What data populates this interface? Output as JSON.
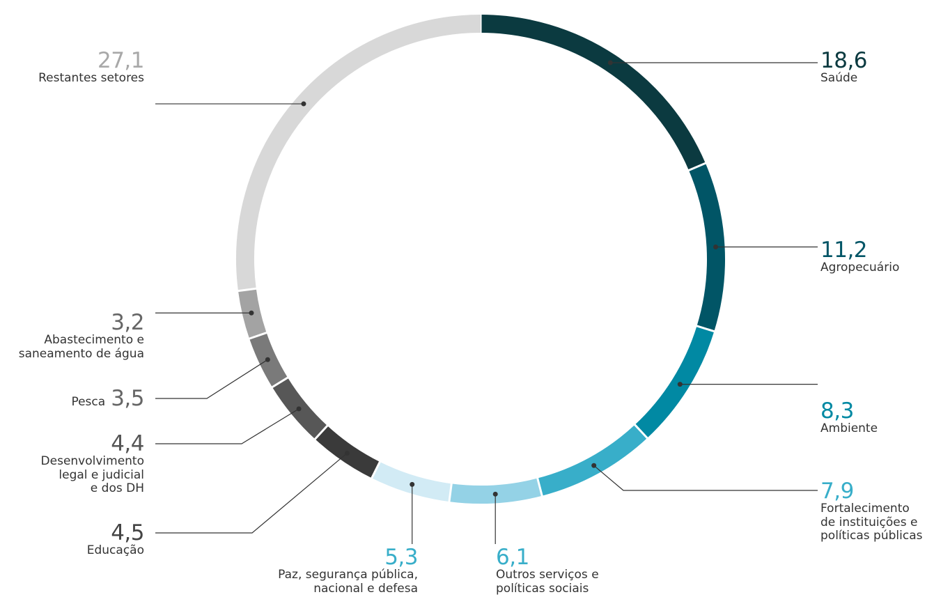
{
  "chart_data": {
    "type": "pie",
    "style": "donut",
    "slices": [
      {
        "label": "Saúde",
        "value_label": "18,6",
        "value": 18.6,
        "color": "#0b3a40",
        "label_color": "#0b3a40"
      },
      {
        "label": "Agropecuário",
        "value_label": "11,2",
        "value": 11.2,
        "color": "#015566",
        "label_color": "#015566"
      },
      {
        "label": "Ambiente",
        "value_label": "8,3",
        "value": 8.3,
        "color": "#0189a3",
        "label_color": "#0189a3"
      },
      {
        "label": "Fortalecimento\nde instituições e\npolíticas públicas",
        "value_label": "7,9",
        "value": 7.9,
        "color": "#38aec9",
        "label_color": "#38aec9"
      },
      {
        "label": "Outros serviços e\npolíticas sociais",
        "value_label": "6,1",
        "value": 6.1,
        "color": "#94d2e6",
        "label_color": "#38aec9"
      },
      {
        "label": "Paz, segurança pública,\nnacional e defesa",
        "value_label": "5,3",
        "value": 5.3,
        "color": "#d2ebf5",
        "label_color": "#38aec9"
      },
      {
        "label": "Educação",
        "value_label": "4,5",
        "value": 4.5,
        "color": "#3a3a3a",
        "label_color": "#444444"
      },
      {
        "label": "Desenvolvimento\nlegal e judicial\ne dos DH",
        "value_label": "4,4",
        "value": 4.4,
        "color": "#575757",
        "label_color": "#555555"
      },
      {
        "label": "Pesca",
        "value_label": "3,5",
        "value": 3.5,
        "color": "#7a7a7a",
        "label_color": "#666666"
      },
      {
        "label": "Abastecimento e\nsaneamento de água",
        "value_label": "3,2",
        "value": 3.2,
        "color": "#a3a3a3",
        "label_color": "#666666"
      },
      {
        "label": "Restantes setores",
        "value_label": "27,1",
        "value": 27.1,
        "color": "#d8d8d8",
        "label_color": "#a8a8a8"
      }
    ]
  }
}
